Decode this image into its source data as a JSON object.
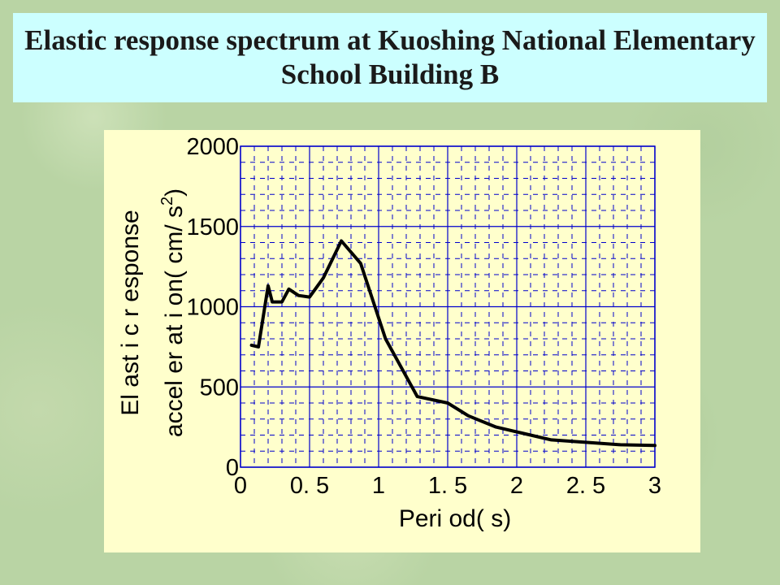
{
  "slide": {
    "title": "Elastic response spectrum at Kuoshing National Elementary School Building B"
  },
  "colors": {
    "title_bg": "#ccffff",
    "panel_bg": "#ffffcc",
    "grid": "#0000cc",
    "line": "#000000"
  },
  "chart_data": {
    "type": "line",
    "title": "",
    "xlabel": "Peri od( s)",
    "ylabel": "El ast i c r esponse",
    "ylabel2": "accel er at i on( cm/ s",
    "ylabel2_superscript": "2",
    "ylabel2_close": ")",
    "xlim": [
      0,
      3
    ],
    "ylim": [
      0,
      2000
    ],
    "x_ticks": [
      {
        "value": 0,
        "label": "0"
      },
      {
        "value": 0.5,
        "label": "0. 5"
      },
      {
        "value": 1,
        "label": "1"
      },
      {
        "value": 1.5,
        "label": "1. 5"
      },
      {
        "value": 2,
        "label": "2"
      },
      {
        "value": 2.5,
        "label": "2. 5"
      },
      {
        "value": 3,
        "label": "3"
      }
    ],
    "y_ticks": [
      {
        "value": 0,
        "label": "0"
      },
      {
        "value": 500,
        "label": "500"
      },
      {
        "value": 1000,
        "label": "1000"
      },
      {
        "value": 1500,
        "label": "1500"
      },
      {
        "value": 2000,
        "label": "2000"
      }
    ],
    "grid": true,
    "series": [
      {
        "x": [
          0.08,
          0.13,
          0.2,
          0.23,
          0.3,
          0.35,
          0.42,
          0.5,
          0.6,
          0.73,
          0.87,
          1.05,
          1.28,
          1.5,
          1.65,
          1.85,
          2.05,
          2.25,
          2.5,
          2.75,
          3.0
        ],
        "values": [
          760,
          750,
          1130,
          1030,
          1030,
          1110,
          1070,
          1060,
          1180,
          1410,
          1270,
          800,
          440,
          400,
          320,
          250,
          210,
          170,
          155,
          140,
          135
        ]
      }
    ]
  }
}
